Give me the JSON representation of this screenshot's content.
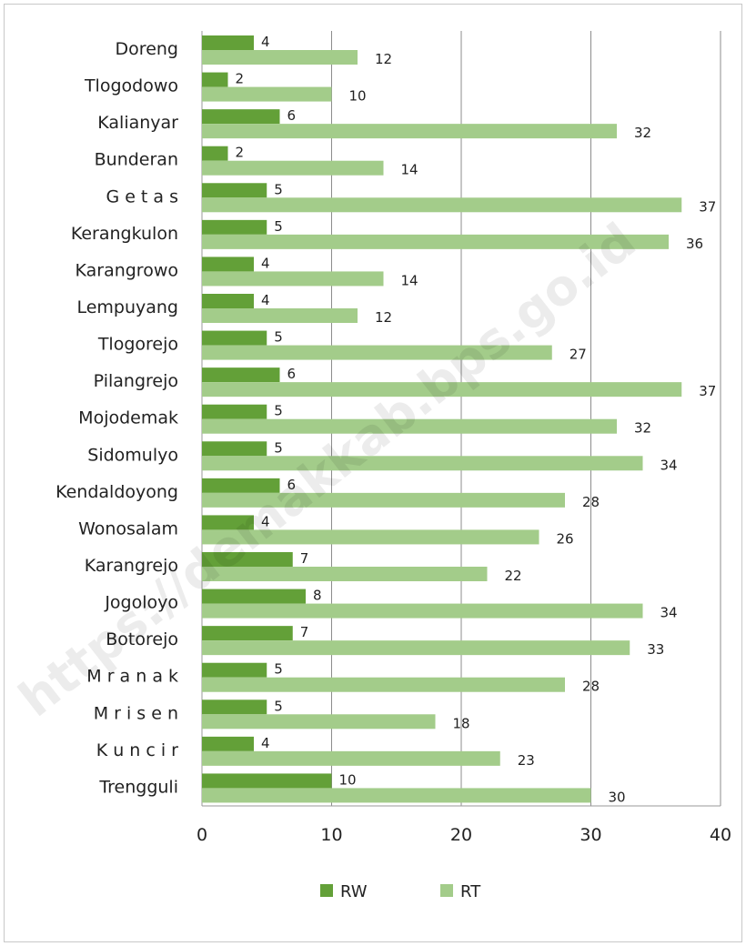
{
  "chart_data": {
    "type": "bar",
    "orientation": "horizontal",
    "categories": [
      "Doreng",
      "Tlogodowo",
      "Kalianyar",
      "Bunderan",
      "G e t a s",
      "Kerangkulon",
      "Karangrowo",
      "Lempuyang",
      "Tlogorejo",
      "Pilangrejo",
      "Mojodemak",
      "Sidomulyo",
      "Kendaldoyong",
      "Wonosalam",
      "Karangrejo",
      "Jogoloyo",
      "Botorejo",
      "M r a n a k",
      "M r i s e n",
      "K u n c i r",
      "Trengguli"
    ],
    "series": [
      {
        "name": "RW",
        "color": "#63a038",
        "values": [
          4,
          2,
          6,
          2,
          5,
          5,
          4,
          4,
          5,
          6,
          5,
          5,
          6,
          4,
          7,
          8,
          7,
          5,
          5,
          4,
          10
        ]
      },
      {
        "name": "RT",
        "color": "#a3cc8a",
        "values": [
          12,
          10,
          32,
          14,
          37,
          36,
          14,
          12,
          27,
          37,
          32,
          34,
          28,
          26,
          22,
          34,
          33,
          28,
          18,
          23,
          30
        ]
      }
    ],
    "xlim": [
      0,
      40
    ],
    "xticks": [
      0,
      10,
      20,
      30,
      40
    ],
    "grid": true,
    "legend": "bottom",
    "watermark": "https://demakkab.bps.go.id"
  }
}
